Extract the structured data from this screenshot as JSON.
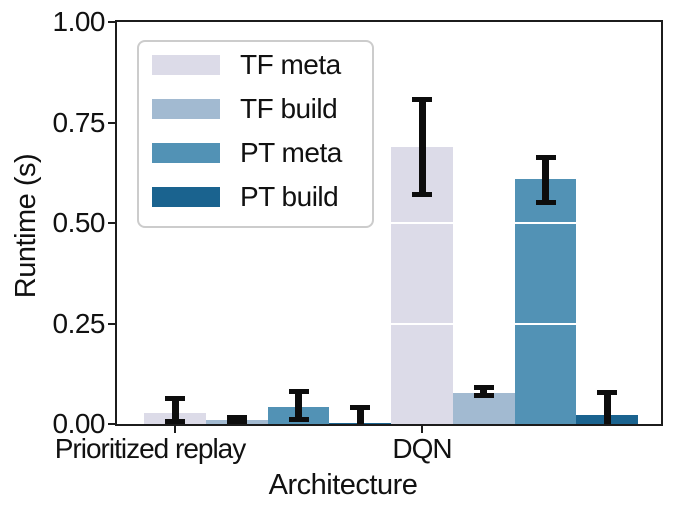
{
  "chart_data": {
    "type": "bar",
    "title": "",
    "xlabel": "Architecture",
    "ylabel": "Runtime (s)",
    "categories": [
      "Prioritized replay",
      "DQN"
    ],
    "ylim": [
      0,
      1.0
    ],
    "yticks": [
      {
        "label": "0.00",
        "value": 0.0
      },
      {
        "label": "0.25",
        "value": 0.25
      },
      {
        "label": "0.50",
        "value": 0.5
      },
      {
        "label": "0.75",
        "value": 0.75
      },
      {
        "label": "1.00",
        "value": 1.0
      }
    ],
    "gridline_values": [
      0.25,
      0.5,
      0.75
    ],
    "grid_color": "#ffffff",
    "errorbar_color": "#0d0d0d",
    "legend_position": "upper left",
    "legend": [
      "TF meta",
      "TF build",
      "PT meta",
      "PT build"
    ],
    "series": [
      {
        "name": "TF meta",
        "color": "#dcdbe8",
        "values": [
          0.027,
          0.69
        ],
        "err_low": [
          0.007,
          0.572
        ],
        "err_high": [
          0.063,
          0.806
        ]
      },
      {
        "name": "TF build",
        "color": "#a2bad1",
        "values": [
          0.01,
          0.077
        ],
        "err_low": [
          0.006,
          0.072
        ],
        "err_high": [
          0.015,
          0.092
        ]
      },
      {
        "name": "PT meta",
        "color": "#5292b5",
        "values": [
          0.043,
          0.609
        ],
        "err_low": [
          0.012,
          0.551
        ],
        "err_high": [
          0.082,
          0.663
        ]
      },
      {
        "name": "PT build",
        "color": "#1a638f",
        "values": [
          0.002,
          0.022
        ],
        "err_low": [
          0.0,
          0.0
        ],
        "err_high": [
          0.042,
          0.078
        ]
      }
    ]
  }
}
